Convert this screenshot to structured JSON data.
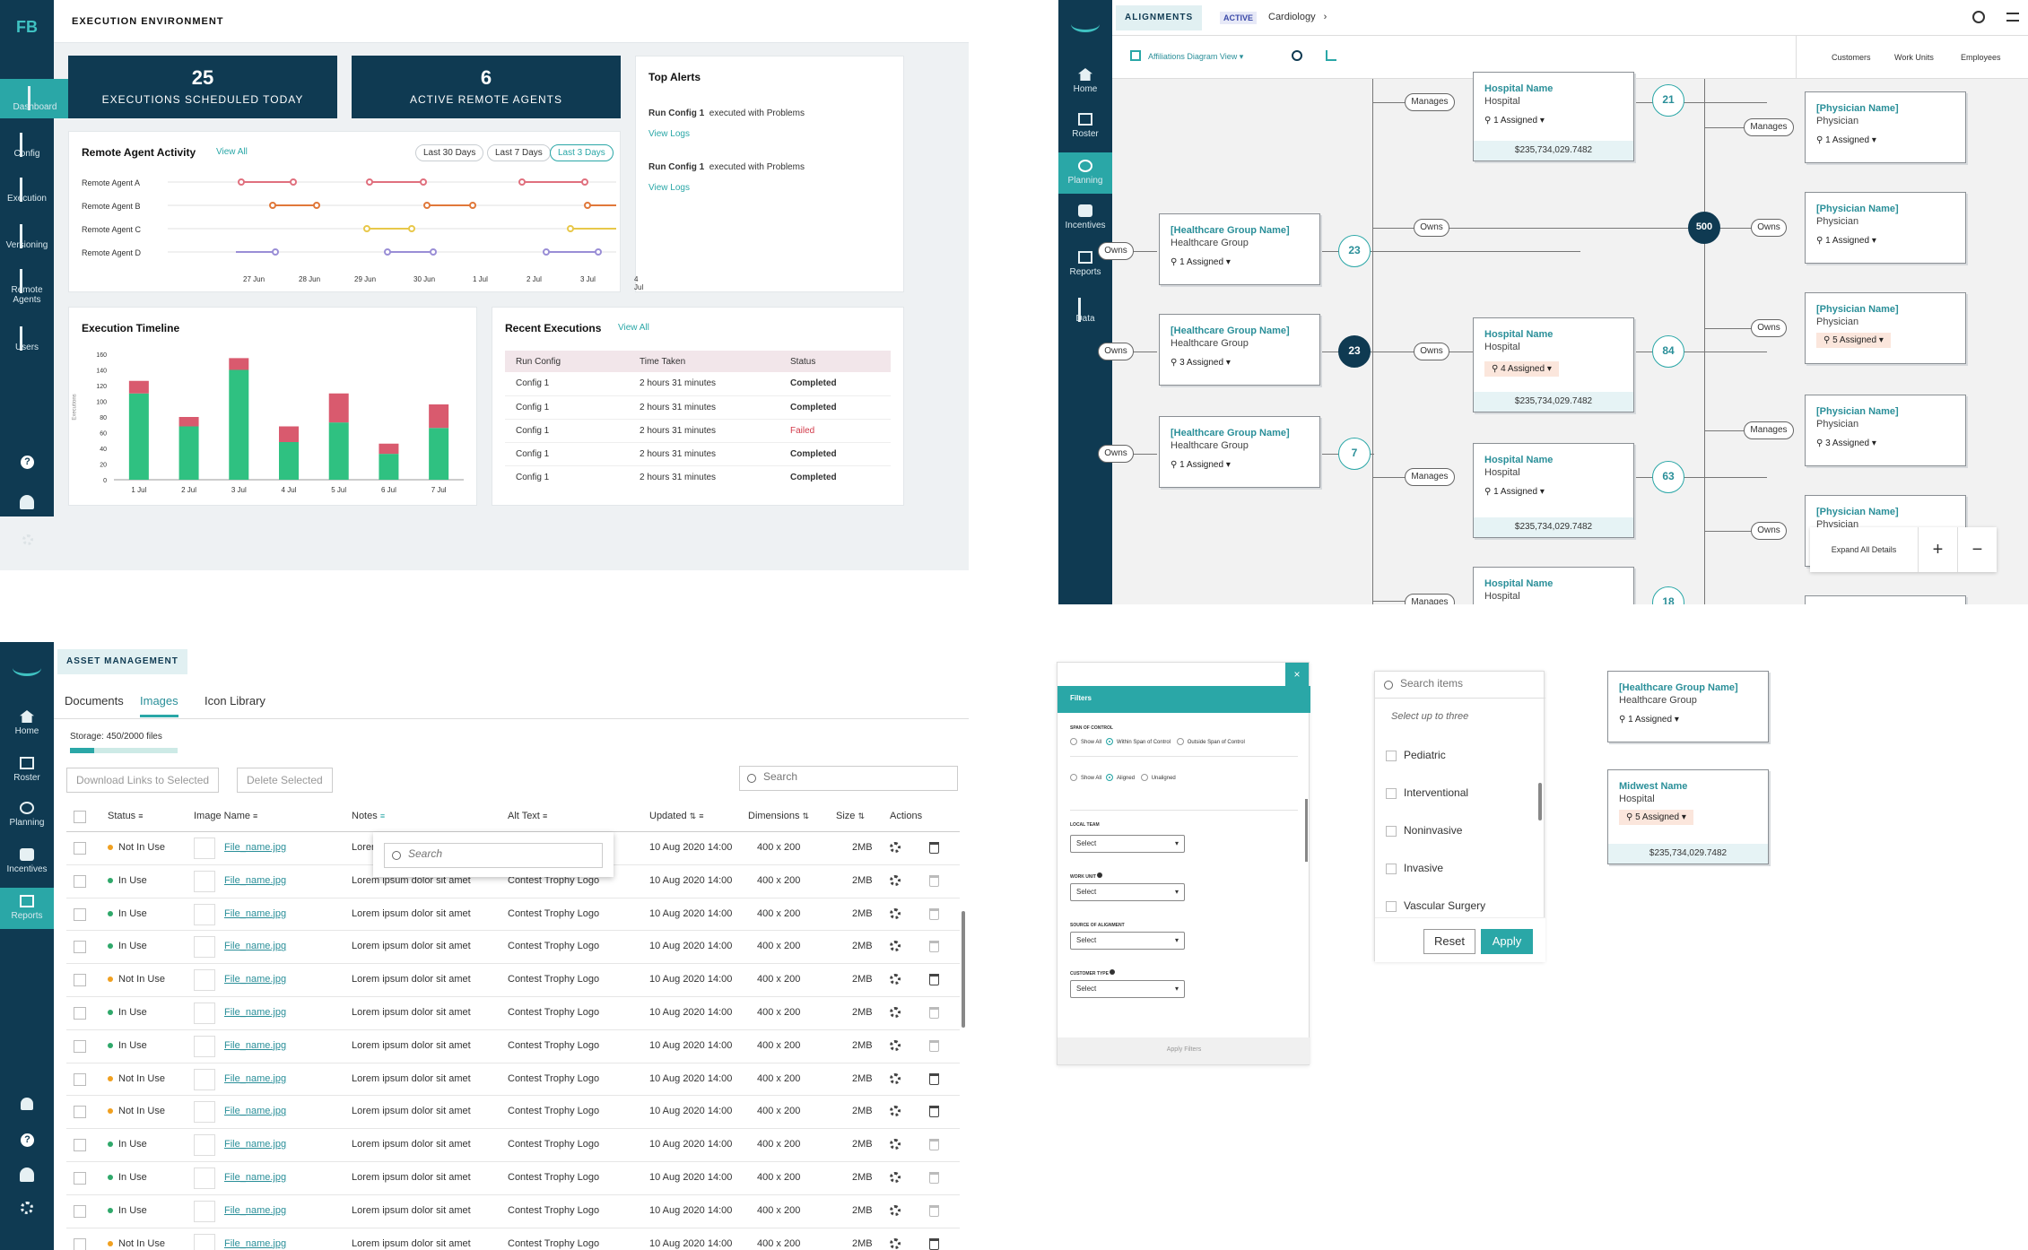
{
  "exec": {
    "logo": "FB",
    "header": "EXECUTION ENVIRONMENT",
    "sidebar": [
      "Dashboard",
      "Config",
      "Execution",
      "Versioning",
      "Remote Agents",
      "Users"
    ],
    "kpi1_value": "25",
    "kpi1_label": "EXECUTIONS SCHEDULED TODAY",
    "kpi2_value": "6",
    "kpi2_label": "ACTIVE REMOTE AGENTS",
    "alerts_title": "Top Alerts",
    "alerts": [
      {
        "config": "Run Config 1",
        "text": "executed with Problems",
        "link": "View Logs"
      },
      {
        "config": "Run Config 1",
        "text": "executed with Problems",
        "link": "View Logs"
      }
    ],
    "activity_title": "Remote Agent Activity",
    "activity_link": "View All",
    "ranges": [
      "Last 30 Days",
      "Last 7 Days",
      "Last 3 Days"
    ],
    "agents": [
      "Remote Agent A",
      "Remote Agent B",
      "Remote Agent C",
      "Remote Agent D"
    ],
    "activity_dates": [
      "27 Jun",
      "28 Jun",
      "29 Jun",
      "30 Jun",
      "1 Jul",
      "2 Jul",
      "3 Jul",
      "4 Jul"
    ],
    "timeline_title": "Execution Timeline",
    "timeline_ylabel": "Executions",
    "recent_title": "Recent Executions",
    "recent_link": "View All",
    "recent_headers": [
      "Run Config",
      "Time Taken",
      "Status"
    ],
    "recent_rows": [
      {
        "config": "Config 1",
        "time": "2 hours 31 minutes",
        "status": "Completed"
      },
      {
        "config": "Config 1",
        "time": "2 hours 31 minutes",
        "status": "Completed"
      },
      {
        "config": "Config 1",
        "time": "2 hours 31 minutes",
        "status": "Failed"
      },
      {
        "config": "Config 1",
        "time": "2 hours 31 minutes",
        "status": "Completed"
      },
      {
        "config": "Config 1",
        "time": "2 hours 31 minutes",
        "status": "Completed"
      }
    ]
  },
  "chart_data": {
    "type": "bar",
    "title": "Execution Timeline",
    "ylabel": "Executions",
    "categories": [
      "1 Jul",
      "2 Jul",
      "3 Jul",
      "4 Jul",
      "5 Jul",
      "6 Jul",
      "7 Jul"
    ],
    "yticks": [
      0,
      20,
      40,
      60,
      80,
      100,
      120,
      140,
      160
    ],
    "ylim": [
      0,
      160
    ],
    "series": [
      {
        "values": [
          110,
          68,
          140,
          48,
          73,
          33,
          66
        ]
      },
      {
        "values": [
          16,
          12,
          15,
          20,
          37,
          13,
          30
        ]
      }
    ],
    "colors": [
      "#2fc181",
      "#d95a6e"
    ]
  },
  "align": {
    "header_tab": "ALIGNMENTS",
    "badge": "ACTIVE",
    "crumb": "Cardiology",
    "view": "Affiliations Diagram View",
    "right_tabs": [
      "Customers",
      "Work Units",
      "Employees"
    ],
    "sidebar": [
      "Home",
      "Roster",
      "Planning",
      "Incentives",
      "Reports",
      "Data"
    ],
    "groups": [
      {
        "name": "[Healthcare Group Name]",
        "type": "Healthcare Group",
        "assigned": "1 Assigned"
      },
      {
        "name": "[Healthcare Group Name]",
        "type": "Healthcare Group",
        "assigned": "3 Assigned"
      },
      {
        "name": "[Healthcare Group Name]",
        "type": "Healthcare Group",
        "assigned": "1 Assigned"
      }
    ],
    "group_counts": [
      "23",
      "23",
      "7"
    ],
    "hospitals": [
      {
        "name": "Hospital Name",
        "type": "Hospital",
        "assigned": "1 Assigned",
        "amount": "$235,734,029.7482"
      },
      {
        "name": "Hospital Name",
        "type": "Hospital",
        "assigned": "4 Assigned",
        "amount": "$235,734,029.7482"
      },
      {
        "name": "Hospital Name",
        "type": "Hospital",
        "assigned": "1 Assigned",
        "amount": "$235,734,029.7482"
      },
      {
        "name": "Hospital Name",
        "type": "Hospital",
        "assigned": "",
        "amount": ""
      }
    ],
    "hospital_counts": [
      "21",
      "84",
      "63",
      "18"
    ],
    "center_count": "500",
    "physicians": [
      {
        "name": "[Physician Name]",
        "type": "Physician",
        "assigned": "1 Assigned"
      },
      {
        "name": "[Physician Name]",
        "type": "Physician",
        "assigned": "1 Assigned"
      },
      {
        "name": "[Physician Name]",
        "type": "Physician",
        "assigned": "5 Assigned"
      },
      {
        "name": "[Physician Name]",
        "type": "Physician",
        "assigned": "3 Assigned"
      },
      {
        "name": "[Physician Name]",
        "type": "Physician",
        "assigned": ""
      }
    ],
    "labels": {
      "owns": "Owns",
      "manages": "Manages"
    },
    "expand": "Expand All Details",
    "plus": "+",
    "minus": "−"
  },
  "asset": {
    "header_tab": "ASSET MANAGEMENT",
    "tabs": [
      "Documents",
      "Images",
      "Icon Library"
    ],
    "sidebar": [
      "Home",
      "Roster",
      "Planning",
      "Incentives",
      "Reports"
    ],
    "storage": "Storage: 450/2000 files",
    "storage_fraction": 0.225,
    "download": "Download Links to Selected",
    "delete": "Delete Selected",
    "search_placeholder": "Search",
    "columns": [
      "Status",
      "Image Name",
      "Notes",
      "Alt Text",
      "Updated",
      "Dimensions",
      "Size",
      "Actions"
    ],
    "notes_truncated": "Lorer",
    "popup_placeholder": "Search",
    "rows": [
      {
        "status": "Not In Use",
        "name": "File_name.jpg",
        "notes": "Lorem ipsum dolor sit amet",
        "alt": "Contest Trophy Logo",
        "updated": "10 Aug 2020 14:00",
        "dim": "400 x 200",
        "size": "2MB"
      },
      {
        "status": "In Use",
        "name": "File_name.jpg",
        "notes": "Lorem ipsum dolor sit amet",
        "alt": "Contest Trophy Logo",
        "updated": "10 Aug 2020 14:00",
        "dim": "400 x 200",
        "size": "2MB"
      },
      {
        "status": "In Use",
        "name": "File_name.jpg",
        "notes": "Lorem ipsum dolor sit amet",
        "alt": "Contest Trophy Logo",
        "updated": "10 Aug 2020 14:00",
        "dim": "400 x 200",
        "size": "2MB"
      },
      {
        "status": "In Use",
        "name": "File_name.jpg",
        "notes": "Lorem ipsum dolor sit amet",
        "alt": "Contest Trophy Logo",
        "updated": "10 Aug 2020 14:00",
        "dim": "400 x 200",
        "size": "2MB"
      },
      {
        "status": "Not In Use",
        "name": "File_name.jpg",
        "notes": "Lorem ipsum dolor sit amet",
        "alt": "Contest Trophy Logo",
        "updated": "10 Aug 2020 14:00",
        "dim": "400 x 200",
        "size": "2MB"
      },
      {
        "status": "In Use",
        "name": "File_name.jpg",
        "notes": "Lorem ipsum dolor sit amet",
        "alt": "Contest Trophy Logo",
        "updated": "10 Aug 2020 14:00",
        "dim": "400 x 200",
        "size": "2MB"
      },
      {
        "status": "In Use",
        "name": "File_name.jpg",
        "notes": "Lorem ipsum dolor sit amet",
        "alt": "Contest Trophy Logo",
        "updated": "10 Aug 2020 14:00",
        "dim": "400 x 200",
        "size": "2MB"
      },
      {
        "status": "Not In Use",
        "name": "File_name.jpg",
        "notes": "Lorem ipsum dolor sit amet",
        "alt": "Contest Trophy Logo",
        "updated": "10 Aug 2020 14:00",
        "dim": "400 x 200",
        "size": "2MB"
      },
      {
        "status": "Not In Use",
        "name": "File_name.jpg",
        "notes": "Lorem ipsum dolor sit amet",
        "alt": "Contest Trophy Logo",
        "updated": "10 Aug 2020 14:00",
        "dim": "400 x 200",
        "size": "2MB"
      },
      {
        "status": "In Use",
        "name": "File_name.jpg",
        "notes": "Lorem ipsum dolor sit amet",
        "alt": "Contest Trophy Logo",
        "updated": "10 Aug 2020 14:00",
        "dim": "400 x 200",
        "size": "2MB"
      },
      {
        "status": "In Use",
        "name": "File_name.jpg",
        "notes": "Lorem ipsum dolor sit amet",
        "alt": "Contest Trophy Logo",
        "updated": "10 Aug 2020 14:00",
        "dim": "400 x 200",
        "size": "2MB"
      },
      {
        "status": "In Use",
        "name": "File_name.jpg",
        "notes": "Lorem ipsum dolor sit amet",
        "alt": "Contest Trophy Logo",
        "updated": "10 Aug 2020 14:00",
        "dim": "400 x 200",
        "size": "2MB"
      },
      {
        "status": "Not In Use",
        "name": "File_name.jpg",
        "notes": "Lorem ipsum dolor sit amet",
        "alt": "Contest Trophy Logo",
        "updated": "10 Aug 2020 14:00",
        "dim": "400 x 200",
        "size": "2MB"
      }
    ],
    "status_colors": {
      "Not In Use": "#f0a020",
      "In Use": "#2fa86a"
    }
  },
  "filters": {
    "title": "Filters",
    "close": "×",
    "span_label": "SPAN OF CONTROL",
    "span_opts": [
      "Show All",
      "Within Span of Control",
      "Outside Span of Control"
    ],
    "align_opts": [
      "Show All",
      "Aligned",
      "Unaligned"
    ],
    "fields": [
      "LOCAL TEAM",
      "WORK UNIT",
      "SOURCE OF ALIGNMENT",
      "CUSTOMER TYPE"
    ],
    "select": "Select",
    "apply": "Apply Filters"
  },
  "picker": {
    "placeholder": "Search items",
    "hint": "Select up to three",
    "items": [
      "Pediatric",
      "Interventional",
      "Noninvasive",
      "Invasive",
      "Vascular Surgery"
    ],
    "reset": "Reset",
    "apply": "Apply"
  },
  "samples": {
    "group": {
      "name": "[Healthcare Group Name]",
      "type": "Healthcare Group",
      "assigned": "1 Assigned"
    },
    "hospital": {
      "name": "Midwest Name",
      "type": "Hospital",
      "assigned": "5 Assigned",
      "amount": "$235,734,029.7482"
    }
  }
}
